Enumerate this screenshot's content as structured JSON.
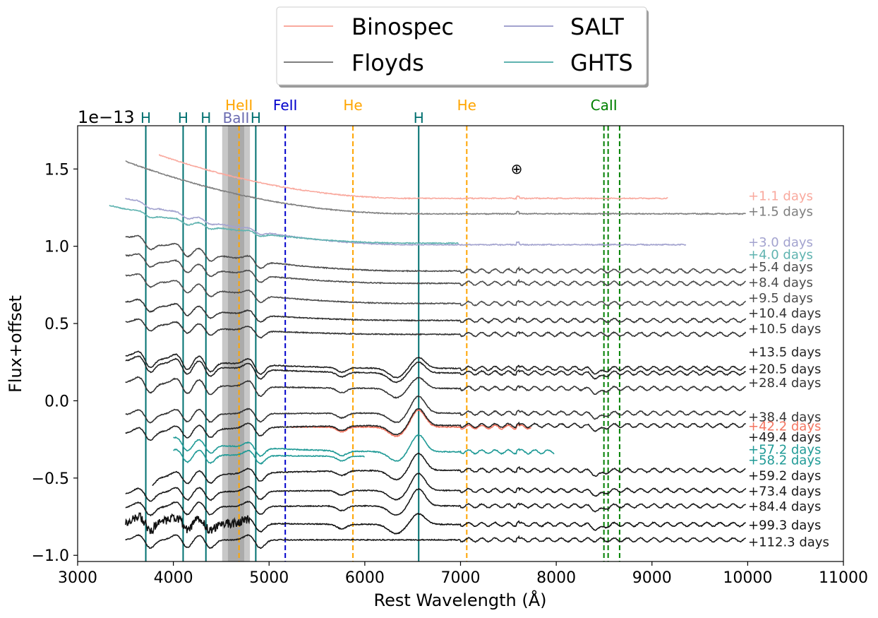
{
  "chart_data": {
    "type": "line",
    "xlabel": "Rest Wavelength (Å)",
    "ylabel": "Flux+offset",
    "offset_text": "1e−13",
    "xlim": [
      3000,
      11000
    ],
    "ylim": [
      -1.04,
      1.78
    ],
    "xticks": [
      3000,
      4000,
      5000,
      6000,
      7000,
      8000,
      9000,
      10000,
      11000
    ],
    "yticks": [
      -1.0,
      -0.5,
      0.0,
      0.5,
      1.0,
      1.5
    ],
    "ytick_labels": [
      "−1.0",
      "−0.5",
      "0.0",
      "0.5",
      "1.0",
      "1.5"
    ],
    "legend": {
      "placement": "top-center",
      "entries": [
        {
          "name": "Binospec",
          "color": "#f9a99e"
        },
        {
          "name": "SALT",
          "color": "#a3a3cf"
        },
        {
          "name": "Floyds",
          "color": "#7f7f7f"
        },
        {
          "name": "GHTS",
          "color": "#5fb3b0"
        }
      ]
    },
    "earth_symbol": {
      "text": "⊕",
      "x": 7580,
      "y": 1.49
    },
    "ba_band": {
      "label": "BaII",
      "x0": 4510,
      "x1": 4800,
      "inner_x0": 4570,
      "inner_x1": 4740,
      "color": "#6b6bb0"
    },
    "lines": [
      {
        "label": "H",
        "x": 3712,
        "style": "solid",
        "color": "#007070",
        "label_row": "low"
      },
      {
        "label": "H",
        "x": 4102,
        "style": "solid",
        "color": "#007070",
        "label_row": "low"
      },
      {
        "label": "H",
        "x": 4340,
        "style": "solid",
        "color": "#007070",
        "label_row": "low"
      },
      {
        "label": "H",
        "x": 4861,
        "style": "solid",
        "color": "#007070",
        "label_row": "low"
      },
      {
        "label": "H",
        "x": 6563,
        "style": "solid",
        "color": "#007070",
        "label_row": "low"
      },
      {
        "label": "HeII",
        "x": 4686,
        "style": "dashed",
        "color": "#ffa500",
        "label_row": "high"
      },
      {
        "label": "FeII",
        "x": 5169,
        "style": "dashed",
        "color": "#0000cc",
        "label_row": "high"
      },
      {
        "label": "He",
        "x": 5876,
        "style": "dashed",
        "color": "#ffa500",
        "label_row": "high"
      },
      {
        "label": "He",
        "x": 7065,
        "style": "dashed",
        "color": "#ffa500",
        "label_row": "high"
      },
      {
        "label": "CaII",
        "x": 8498,
        "style": "dashed",
        "color": "#008000",
        "label_row": "high"
      },
      {
        "label": "",
        "x": 8542,
        "style": "dashed",
        "color": "#008000",
        "label_row": "none"
      },
      {
        "label": "",
        "x": 8662,
        "style": "dashed",
        "color": "#008000",
        "label_row": "none"
      }
    ],
    "series": [
      {
        "label": "+1.1 days",
        "instrument": "Binospec",
        "color": "#f9a99e",
        "x0": 3850,
        "x1": 9170,
        "level": 1.31,
        "blue_excess": 0.36,
        "shape": "flat",
        "label_y": 1.33
      },
      {
        "label": "+1.5 days",
        "instrument": "Floyds",
        "color": "#7f7f7f",
        "x0": 3500,
        "x1": 9980,
        "level": 1.21,
        "blue_excess": 0.34,
        "shape": "flat",
        "label_y": 1.23
      },
      {
        "label": "+3.0 days",
        "instrument": "SALT",
        "color": "#a3a3cf",
        "x0": 3500,
        "x1": 9360,
        "level": 1.01,
        "blue_excess": 0.3,
        "shape": "early",
        "label_y": 1.03
      },
      {
        "label": "+4.0 days",
        "instrument": "GHTS",
        "color": "#5fb3b0",
        "x0": 3330,
        "x1": 6980,
        "level": 1.02,
        "blue_excess": 0.22,
        "shape": "early",
        "label_y": 0.95
      },
      {
        "label": "+5.4 days",
        "instrument": "Floyds",
        "color": "#4d4d4d",
        "x0": 3500,
        "x1": 9980,
        "level": 0.84,
        "blue_excess": 0.22,
        "shape": "mid",
        "label_y": 0.87
      },
      {
        "label": "+8.4 days",
        "instrument": "Floyds",
        "color": "#4d4d4d",
        "x0": 3500,
        "x1": 9980,
        "level": 0.76,
        "blue_excess": 0.18,
        "shape": "mid",
        "label_y": 0.77
      },
      {
        "label": "+9.5 days",
        "instrument": "Floyds",
        "color": "#4d4d4d",
        "x0": 3500,
        "x1": 9980,
        "level": 0.63,
        "blue_excess": 0.18,
        "shape": "mid",
        "label_y": 0.67
      },
      {
        "label": "+10.4 days",
        "instrument": "Floyds",
        "color": "#333333",
        "x0": 3500,
        "x1": 9980,
        "level": 0.52,
        "blue_excess": 0.12,
        "shape": "mid",
        "label_y": 0.57
      },
      {
        "label": "+10.5 days",
        "instrument": "Floyds",
        "color": "#333333",
        "x0": 3500,
        "x1": 9980,
        "level": 0.43,
        "blue_excess": 0.08,
        "shape": "mid",
        "label_y": 0.47
      },
      {
        "label": "+13.5 days",
        "instrument": "Floyds",
        "color": "#222222",
        "x0": 3500,
        "x1": 9980,
        "level": 0.21,
        "blue_excess": 0.08,
        "shape": "late",
        "label_y": 0.32
      },
      {
        "label": "+20.5 days",
        "instrument": "Floyds",
        "color": "#222222",
        "x0": 3500,
        "x1": 9980,
        "level": 0.18,
        "blue_excess": 0.08,
        "shape": "late",
        "label_y": 0.21
      },
      {
        "label": "+28.4 days",
        "instrument": "Floyds",
        "color": "#333333",
        "x0": 3500,
        "x1": 9980,
        "level": 0.08,
        "blue_excess": 0.04,
        "shape": "late",
        "label_y": 0.12
      },
      {
        "label": "+38.4 days",
        "instrument": "Floyds",
        "color": "#333333",
        "x0": 3500,
        "x1": 9980,
        "level": -0.08,
        "blue_excess": -0.01,
        "shape": "neb",
        "label_y": -0.1
      },
      {
        "label": "+42.2 days",
        "instrument": "Binospec",
        "color": "#f47560",
        "x0": 5230,
        "x1": 7740,
        "level": -0.17,
        "blue_excess": 0.0,
        "shape": "neb",
        "label_y": -0.16
      },
      {
        "label": "+49.4 days",
        "instrument": "Floyds",
        "color": "#222222",
        "x0": 3500,
        "x1": 9980,
        "level": -0.16,
        "blue_excess": -0.05,
        "shape": "neb",
        "label_y": -0.23
      },
      {
        "label": "+57.2 days",
        "instrument": "GHTS",
        "color": "#1f9a96",
        "x0": 4000,
        "x1": 7980,
        "level": -0.33,
        "blue_excess": 0.09,
        "shape": "neb",
        "label_y": -0.31
      },
      {
        "label": "+58.2 days",
        "instrument": "GHTS",
        "color": "#1f9a96",
        "x0": 4000,
        "x1": 6000,
        "level": -0.36,
        "blue_excess": 0.02,
        "shape": "neb",
        "label_y": -0.38
      },
      {
        "label": "+59.2 days",
        "instrument": "Floyds",
        "color": "#1a1a1a",
        "x0": 3780,
        "x1": 9980,
        "level": -0.45,
        "blue_excess": -0.06,
        "shape": "neb",
        "label_y": -0.48
      },
      {
        "label": "+73.4 days",
        "instrument": "Floyds",
        "color": "#1a1a1a",
        "x0": 3500,
        "x1": 9980,
        "level": -0.58,
        "blue_excess": -0.02,
        "shape": "neb",
        "label_y": -0.58
      },
      {
        "label": "+84.4 days",
        "instrument": "Floyds",
        "color": "#1a1a1a",
        "x0": 3500,
        "x1": 9980,
        "level": -0.68,
        "blue_excess": -0.01,
        "shape": "neb",
        "label_y": -0.68
      },
      {
        "label": "+99.3 days",
        "instrument": "Floyds",
        "color": "#111111",
        "x0": 3500,
        "x1": 9980,
        "level": -0.8,
        "blue_excess": 0.02,
        "shape": "noisy",
        "label_y": -0.8
      },
      {
        "label": "+112.3 days",
        "instrument": "Floyds",
        "color": "#1a1a1a",
        "x0": 3500,
        "x1": 9980,
        "level": -0.9,
        "blue_excess": 0.0,
        "shape": "quiet",
        "label_y": -0.91
      }
    ]
  }
}
